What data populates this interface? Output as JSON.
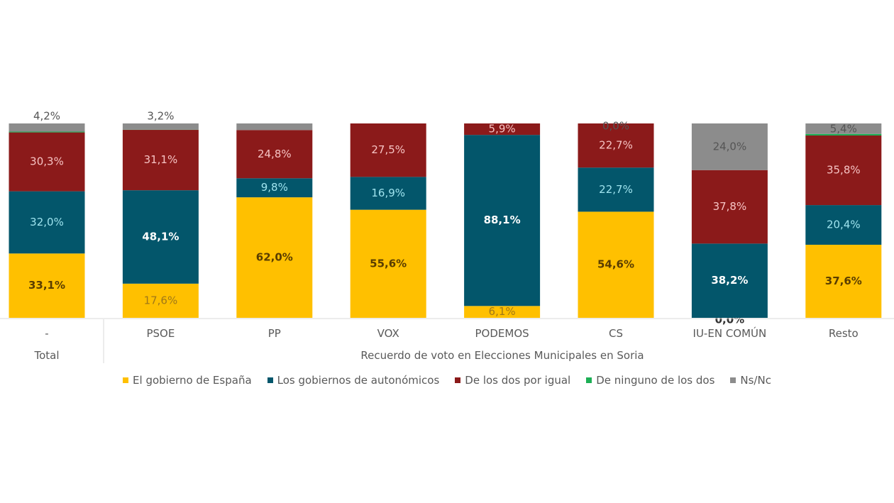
{
  "chart_data": {
    "type": "bar",
    "stacked": true,
    "title": "",
    "xlabel": "Recuerdo de voto en Elecciones Municipales en Soria",
    "ylabel": "",
    "ylim": [
      0,
      100
    ],
    "grid": false,
    "legend_position": "bottom",
    "group_labels": [
      "Total",
      "Recuerdo de voto en Elecciones Municipales en Soria"
    ],
    "categories": [
      "-",
      "PSOE",
      "PP",
      "VOX",
      "PODEMOS",
      "CS",
      "IU-EN COMÚN",
      "Resto"
    ],
    "series": [
      {
        "name": "El gobierno de España",
        "color": "#FFC000",
        "values": [
          33.1,
          17.6,
          62.0,
          55.6,
          6.1,
          54.6,
          0.0,
          37.6
        ],
        "labels": [
          "33,1%",
          "17,6%",
          "62,0%",
          "55,6%",
          "6,1%",
          "54,6%",
          "0,0%",
          "37,6%"
        ]
      },
      {
        "name": "Los gobiernos de autonómicos",
        "color": "#03566B",
        "values": [
          32.0,
          48.1,
          9.8,
          16.9,
          88.1,
          22.7,
          38.2,
          20.4
        ],
        "labels": [
          "32,0%",
          "48,1%",
          "9,8%",
          "16,9%",
          "88,1%",
          "22,7%",
          "38,2%",
          "20,4%"
        ]
      },
      {
        "name": "De los dos por igual",
        "color": "#8B1A1A",
        "values": [
          30.3,
          31.1,
          24.8,
          27.5,
          5.9,
          22.7,
          37.8,
          35.8
        ],
        "labels": [
          "30,3%",
          "31,1%",
          "24,8%",
          "27,5%",
          "5,9%",
          "22,7%",
          "37,8%",
          "35,8%"
        ]
      },
      {
        "name": "De ninguno de los dos",
        "color": "#1DAF55",
        "values": [
          0.4,
          0.1,
          0.0,
          0.0,
          0.0,
          0.0,
          0.0,
          0.8
        ],
        "labels": [
          "",
          "",
          "",
          "",
          "",
          "",
          "",
          ""
        ]
      },
      {
        "name": "Ns/Nc",
        "color": "#8C8C8C",
        "values": [
          4.2,
          3.2,
          3.4,
          0.0,
          0.0,
          0.0,
          24.0,
          5.4
        ],
        "labels": [
          "4,2%",
          "3,2%",
          "",
          "",
          "",
          "0,0%",
          "24,0%",
          "5,4%"
        ]
      }
    ]
  }
}
